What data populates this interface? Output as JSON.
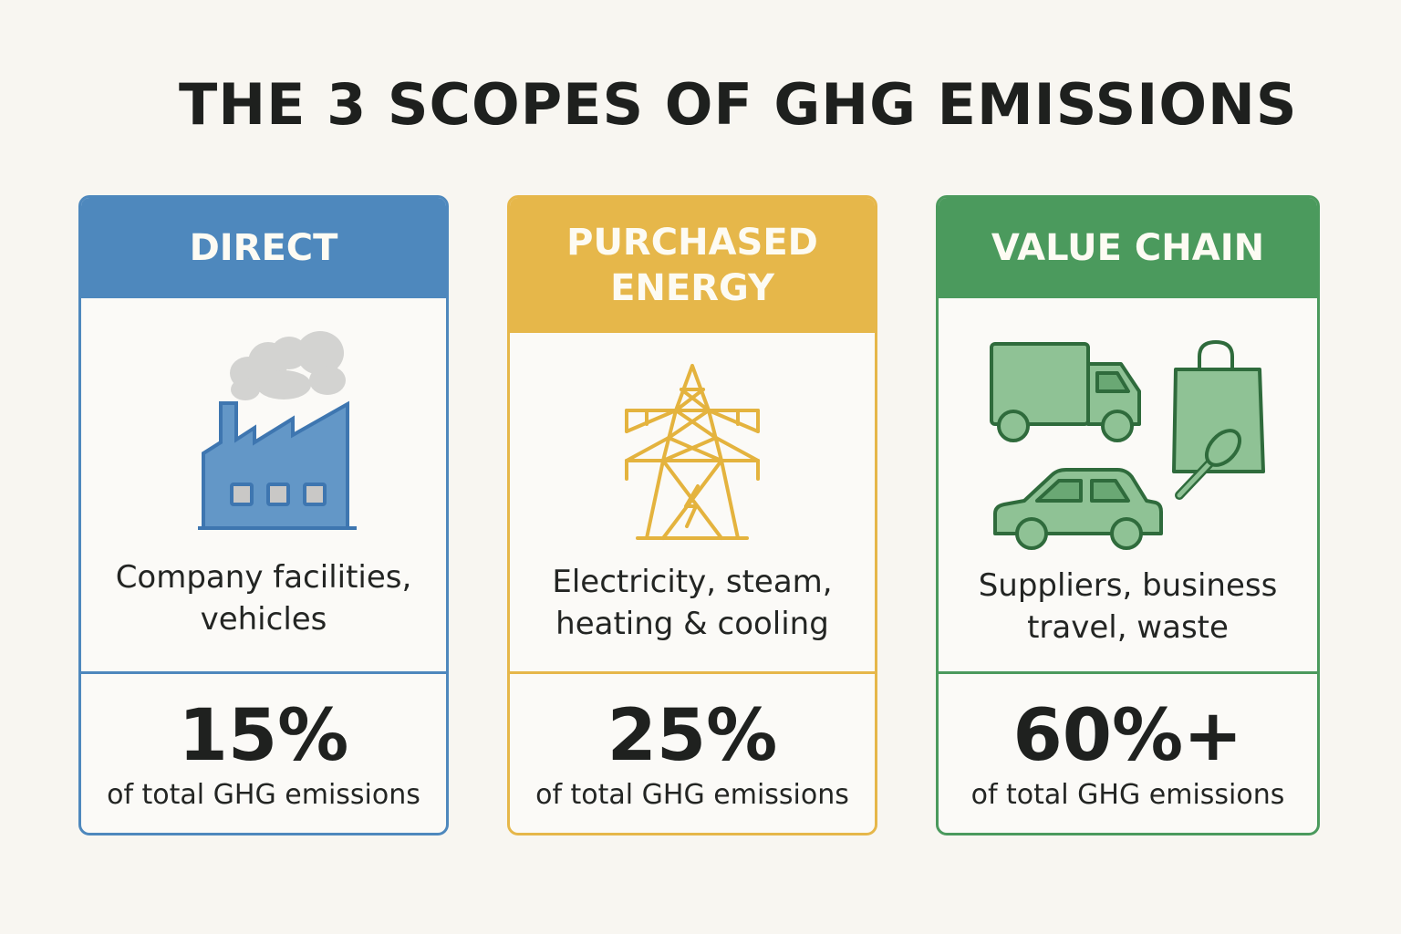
{
  "title": "THE 3 SCOPES OF GHG EMISSIONS",
  "colors": {
    "background": "#f8f6f1",
    "direct": "#4e88bd",
    "purchased_energy": "#e6b74a",
    "value_chain": "#4b9a5d"
  },
  "cards": [
    {
      "header": "DIRECT",
      "icon": "factory-icon",
      "description_line1": "Company facilities,",
      "description_line2": "vehicles",
      "value": "15%",
      "note": "of total GHG emissions"
    },
    {
      "header_line1": "PURCHASED",
      "header_line2": "ENERGY",
      "icon": "power-tower-icon",
      "description_line1": "Electricity, steam,",
      "description_line2": "heating & cooling",
      "value": "25%",
      "note": "of total GHG emissions"
    },
    {
      "header": "VALUE CHAIN",
      "icons": [
        "truck-icon",
        "shopping-bag-icon",
        "car-icon"
      ],
      "description_line1": "Suppliers, business",
      "description_line2": "travel, waste",
      "value": "60%+",
      "note": "of total GHG emissions"
    }
  ]
}
